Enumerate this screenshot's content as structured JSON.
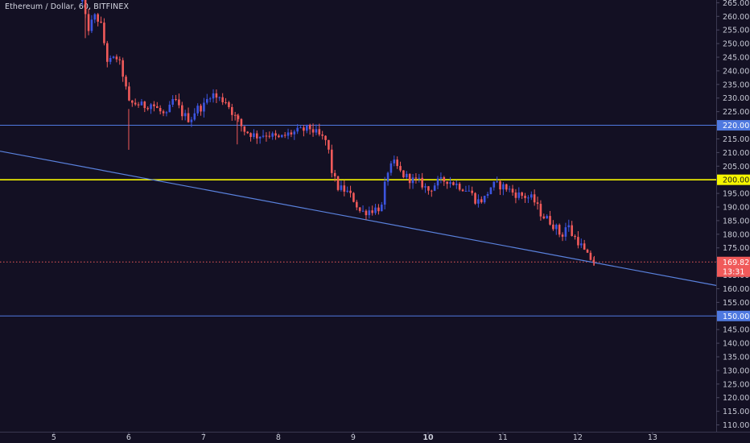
{
  "header": {
    "title": "Ethereum / Dollar, 60, BITFINEX"
  },
  "colors": {
    "background": "#131023",
    "up": "#3c55e0",
    "down": "#f05a5a",
    "hline_blue": "#4f79e0",
    "hline_yellow": "#f5f500",
    "last_price": "#f05a5a",
    "trendline": "#5a82de"
  },
  "chart_data": {
    "type": "candlestick",
    "symbol": "Ethereum / Dollar",
    "interval": "60",
    "exchange": "BITFINEX",
    "ylim": [
      107.5,
      266
    ],
    "xlim": [
      4.28,
      13.85
    ],
    "y_ticks": [
      "265.00",
      "260.00",
      "255.00",
      "250.00",
      "245.00",
      "240.00",
      "235.00",
      "230.00",
      "225.00",
      "220.00",
      "215.00",
      "210.00",
      "205.00",
      "200.00",
      "195.00",
      "190.00",
      "185.00",
      "180.00",
      "175.00",
      "170.00",
      "165.00",
      "160.00",
      "155.00",
      "150.00",
      "145.00",
      "140.00",
      "135.00",
      "130.00",
      "125.00",
      "120.00",
      "115.00",
      "110.00"
    ],
    "x_ticks": [
      {
        "value": 5,
        "label": "5",
        "bold": false
      },
      {
        "value": 6,
        "label": "6",
        "bold": false
      },
      {
        "value": 7,
        "label": "7",
        "bold": false
      },
      {
        "value": 8,
        "label": "8",
        "bold": false
      },
      {
        "value": 9,
        "label": "9",
        "bold": false
      },
      {
        "value": 10,
        "label": "10",
        "bold": true
      },
      {
        "value": 11,
        "label": "11",
        "bold": false
      },
      {
        "value": 12,
        "label": "12",
        "bold": false
      },
      {
        "value": 13,
        "label": "13",
        "bold": false
      }
    ],
    "horizontal_lines": [
      {
        "name": "resistance-220",
        "price": 220,
        "label": "220.00",
        "color": "#4f79e0"
      },
      {
        "name": "level-200",
        "price": 200,
        "label": "200.00",
        "color": "#f5f500"
      },
      {
        "name": "support-150",
        "price": 150,
        "label": "150.00",
        "color": "#4f79e0"
      }
    ],
    "last_price": {
      "price": 169.82,
      "label": "169.82",
      "countdown": "13:31"
    },
    "trendline": {
      "x1": 4.28,
      "y1": 210.5,
      "x2": 13.85,
      "y2": 161.2
    },
    "path": [
      [
        5.38,
        265.5
      ],
      [
        5.45,
        255
      ],
      [
        5.55,
        260
      ],
      [
        5.62,
        258
      ],
      [
        5.72,
        243
      ],
      [
        5.85,
        245
      ],
      [
        5.93,
        238
      ],
      [
        6.0,
        228
      ],
      [
        6.1,
        228
      ],
      [
        6.2,
        227
      ],
      [
        6.3,
        228
      ],
      [
        6.5,
        223
      ],
      [
        6.6,
        230
      ],
      [
        6.72,
        224
      ],
      [
        6.82,
        222
      ],
      [
        6.9,
        226
      ],
      [
        7.0,
        227
      ],
      [
        7.1,
        232
      ],
      [
        7.18,
        230
      ],
      [
        7.3,
        229
      ],
      [
        7.42,
        223
      ],
      [
        7.55,
        218
      ],
      [
        7.7,
        216
      ],
      [
        7.85,
        217
      ],
      [
        8.0,
        215
      ],
      [
        8.15,
        217
      ],
      [
        8.3,
        218
      ],
      [
        8.42,
        219
      ],
      [
        8.55,
        216
      ],
      [
        8.65,
        214
      ],
      [
        8.72,
        202
      ],
      [
        8.8,
        197
      ],
      [
        8.9,
        196
      ],
      [
        9.0,
        193
      ],
      [
        9.1,
        188
      ],
      [
        9.25,
        189
      ],
      [
        9.38,
        190
      ],
      [
        9.45,
        203
      ],
      [
        9.55,
        206
      ],
      [
        9.65,
        202
      ],
      [
        9.78,
        200
      ],
      [
        9.9,
        199
      ],
      [
        10.0,
        196
      ],
      [
        10.12,
        199
      ],
      [
        10.25,
        200
      ],
      [
        10.4,
        198
      ],
      [
        10.55,
        196
      ],
      [
        10.65,
        192
      ],
      [
        10.75,
        193
      ],
      [
        10.85,
        198
      ],
      [
        10.95,
        198
      ],
      [
        11.05,
        197
      ],
      [
        11.15,
        195
      ],
      [
        11.28,
        194
      ],
      [
        11.4,
        193
      ],
      [
        11.52,
        187
      ],
      [
        11.62,
        185
      ],
      [
        11.72,
        182
      ],
      [
        11.78,
        179
      ],
      [
        11.86,
        184
      ],
      [
        11.92,
        180
      ],
      [
        12.02,
        177
      ],
      [
        12.12,
        172
      ],
      [
        12.22,
        170
      ]
    ]
  }
}
